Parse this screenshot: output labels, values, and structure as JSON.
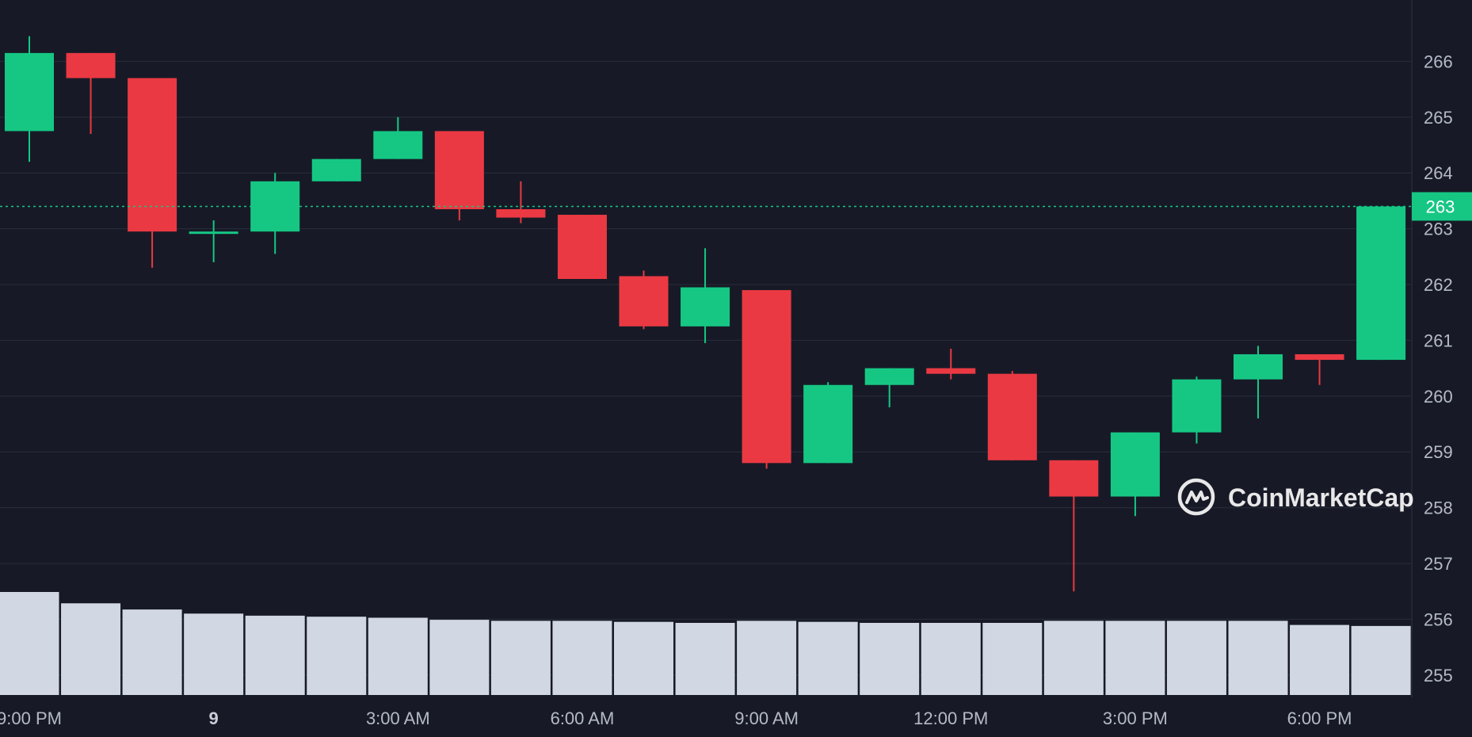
{
  "watermark": {
    "text": "CoinMarketCap"
  },
  "colors": {
    "background": "#171a26",
    "up": "#16c784",
    "down": "#ea3943",
    "grid": "#262a38",
    "axis_text": "#b4bac7",
    "volume": "#d1d7e3"
  },
  "chart_data": {
    "type": "candlestick",
    "title": "",
    "xlabel": "",
    "ylabel": "",
    "ylim": [
      254.6,
      267.1
    ],
    "y_ticks": [
      "255",
      "256",
      "257",
      "258",
      "259",
      "260",
      "261",
      "262",
      "263",
      "264",
      "265",
      "266"
    ],
    "x_ticks": [
      {
        "label": "9:00 PM",
        "index": 0,
        "bold": false
      },
      {
        "label": "9",
        "index": 3,
        "bold": true
      },
      {
        "label": "3:00 AM",
        "index": 6,
        "bold": false
      },
      {
        "label": "6:00 AM",
        "index": 9,
        "bold": false
      },
      {
        "label": "9:00 AM",
        "index": 12,
        "bold": false
      },
      {
        "label": "12:00 PM",
        "index": 15,
        "bold": false
      },
      {
        "label": "3:00 PM",
        "index": 18,
        "bold": false
      },
      {
        "label": "6:00 PM",
        "index": 21,
        "bold": false
      }
    ],
    "current_price": {
      "value": 263.4,
      "label": "263"
    },
    "candles": [
      {
        "o": 264.75,
        "h": 266.45,
        "l": 264.2,
        "c": 266.15
      },
      {
        "o": 266.15,
        "h": 266.15,
        "l": 264.7,
        "c": 265.7
      },
      {
        "o": 265.7,
        "h": 265.7,
        "l": 262.3,
        "c": 262.95
      },
      {
        "o": 262.95,
        "h": 263.15,
        "l": 262.4,
        "c": 262.95
      },
      {
        "o": 262.95,
        "h": 264.0,
        "l": 262.55,
        "c": 263.85
      },
      {
        "o": 263.85,
        "h": 264.25,
        "l": 263.85,
        "c": 264.25
      },
      {
        "o": 264.25,
        "h": 265.0,
        "l": 264.25,
        "c": 264.75
      },
      {
        "o": 264.75,
        "h": 264.75,
        "l": 263.15,
        "c": 263.35
      },
      {
        "o": 263.35,
        "h": 263.85,
        "l": 263.1,
        "c": 263.2
      },
      {
        "o": 263.25,
        "h": 263.25,
        "l": 262.1,
        "c": 262.1
      },
      {
        "o": 262.15,
        "h": 262.25,
        "l": 261.2,
        "c": 261.25
      },
      {
        "o": 261.25,
        "h": 262.65,
        "l": 260.95,
        "c": 261.95
      },
      {
        "o": 261.9,
        "h": 261.9,
        "l": 258.7,
        "c": 258.8
      },
      {
        "o": 258.8,
        "h": 260.25,
        "l": 258.8,
        "c": 260.2
      },
      {
        "o": 260.2,
        "h": 260.5,
        "l": 259.8,
        "c": 260.5
      },
      {
        "o": 260.5,
        "h": 260.85,
        "l": 260.3,
        "c": 260.4
      },
      {
        "o": 260.4,
        "h": 260.45,
        "l": 258.85,
        "c": 258.85
      },
      {
        "o": 258.85,
        "h": 258.85,
        "l": 256.5,
        "c": 258.2
      },
      {
        "o": 258.2,
        "h": 259.35,
        "l": 257.85,
        "c": 259.35
      },
      {
        "o": 259.35,
        "h": 260.35,
        "l": 259.15,
        "c": 260.3
      },
      {
        "o": 260.3,
        "h": 260.9,
        "l": 259.6,
        "c": 260.75
      },
      {
        "o": 260.75,
        "h": 260.75,
        "l": 260.2,
        "c": 260.65
      },
      {
        "o": 260.65,
        "h": 263.4,
        "l": 260.65,
        "c": 263.4
      }
    ],
    "volume": [
      1.0,
      0.89,
      0.83,
      0.79,
      0.77,
      0.76,
      0.75,
      0.73,
      0.72,
      0.72,
      0.71,
      0.7,
      0.72,
      0.71,
      0.7,
      0.7,
      0.7,
      0.72,
      0.72,
      0.72,
      0.72,
      0.68,
      0.67
    ]
  }
}
